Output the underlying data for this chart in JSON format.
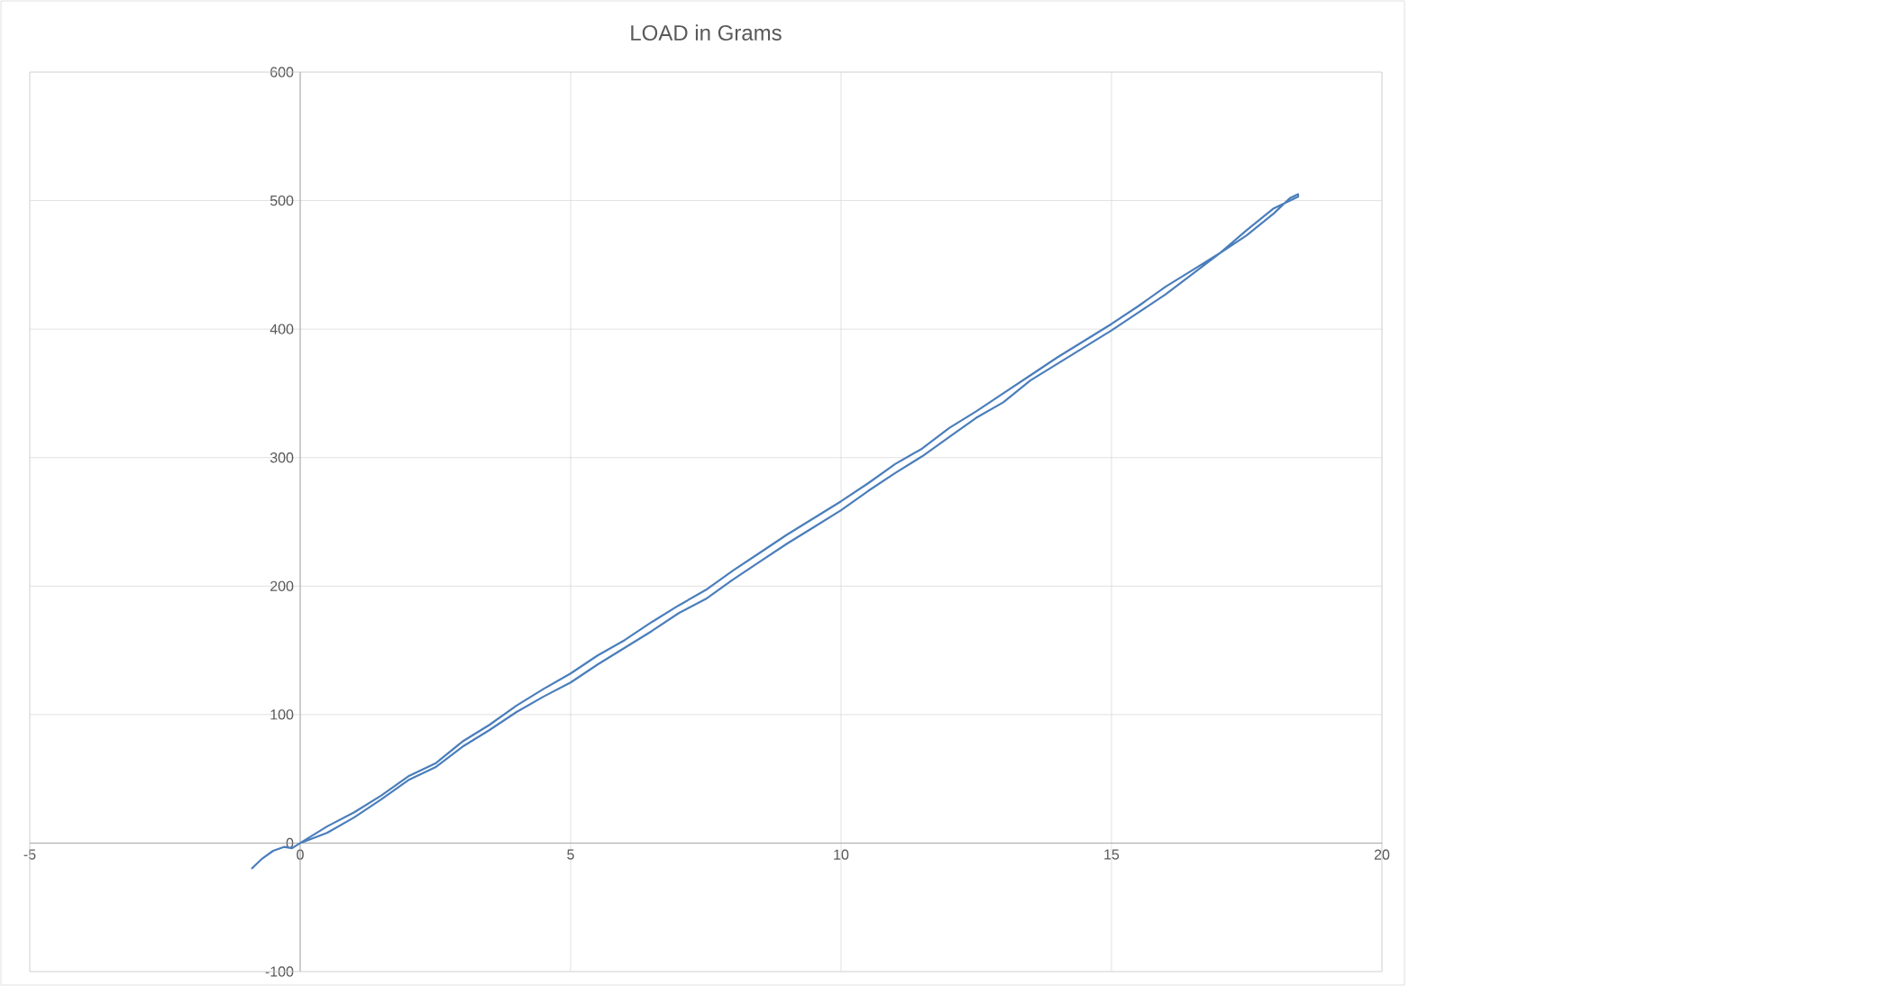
{
  "chart_data": {
    "type": "line",
    "title": "LOAD in Grams",
    "xlim": [
      -5,
      20
    ],
    "ylim": [
      -100,
      600
    ],
    "xticks": [
      -5,
      0,
      5,
      10,
      15,
      20
    ],
    "yticks": [
      -100,
      0,
      100,
      200,
      300,
      400,
      500,
      600
    ],
    "grid": true,
    "series": [
      {
        "color": "#4a7ebb",
        "x": [
          -0.9,
          -0.8,
          -0.7,
          -0.5,
          -0.3,
          -0.15,
          0,
          0.5,
          1,
          1.5,
          2,
          2.5,
          3,
          3.5,
          4,
          4.5,
          5,
          5.5,
          6,
          6.5,
          7,
          7.5,
          8,
          8.5,
          9,
          9.5,
          10,
          10.5,
          11,
          11.5,
          12,
          12.5,
          13,
          13.5,
          14,
          14.5,
          15,
          15.5,
          16,
          16.5,
          17,
          17.5,
          18,
          18.3,
          18.45,
          18.45,
          18,
          17.5,
          17,
          16.5,
          16,
          15.5,
          15,
          14.5,
          14,
          13.5,
          13,
          12.5,
          12,
          11.5,
          11,
          10.5,
          10,
          9.5,
          9,
          8.5,
          8,
          7.5,
          7,
          6.5,
          6,
          5.5,
          5,
          4.5,
          4,
          3.5,
          3,
          2.5,
          2,
          1.5,
          1,
          0.5,
          0
        ],
        "values": [
          -20,
          -16,
          -12,
          -6,
          -3,
          -4,
          0,
          13,
          24,
          37,
          52,
          62,
          79,
          92,
          107,
          120,
          132,
          146,
          158,
          172,
          185,
          197,
          212,
          226,
          240,
          253,
          266,
          280,
          295,
          307,
          323,
          336,
          350,
          364,
          378,
          391,
          404,
          418,
          433,
          446,
          459,
          473,
          490,
          502,
          505,
          503,
          494,
          477,
          459,
          443,
          427,
          413,
          399,
          386,
          373,
          360,
          343,
          331,
          316,
          301,
          288,
          274,
          259,
          246,
          233,
          219,
          205,
          190,
          179,
          165,
          152,
          139,
          125,
          114,
          102,
          88,
          75,
          59,
          49,
          34,
          20,
          8,
          0
        ]
      }
    ]
  }
}
